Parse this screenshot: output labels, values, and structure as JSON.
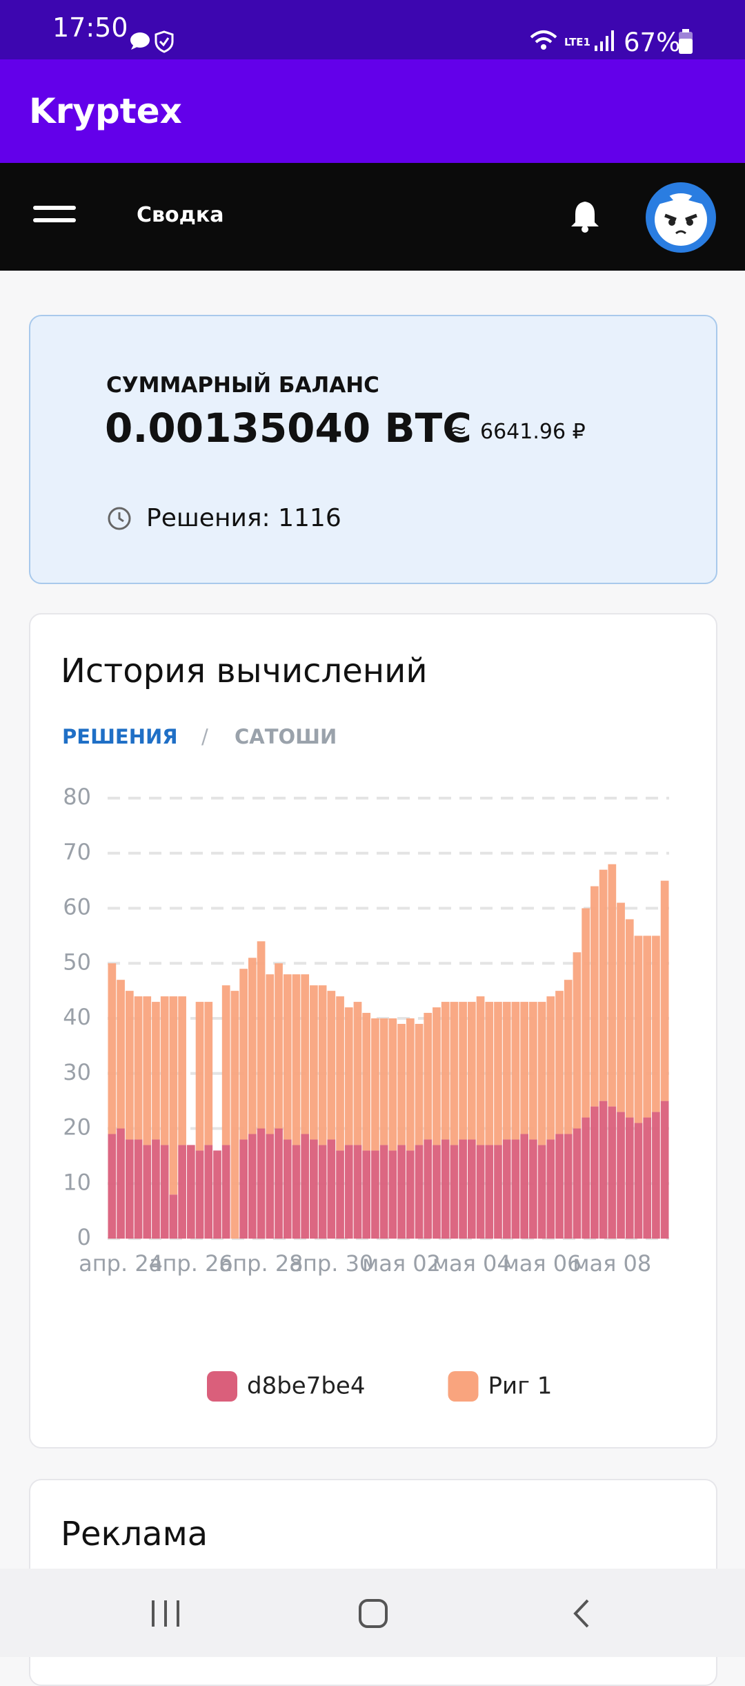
{
  "status_bar": {
    "time": "17:50",
    "network": "LTE1",
    "battery": "67%"
  },
  "app_bar": {
    "title": "Kryptex"
  },
  "nav": {
    "section": "Сводка"
  },
  "balance": {
    "label": "СУММАРНЫЙ БАЛАНС",
    "amount": "0.00135040 BTC",
    "approx": "≈",
    "fiat": "6641.96 ₽",
    "solutions": "Решения: 1116"
  },
  "history": {
    "title": "История вычислений",
    "tabs": [
      "РЕШЕНИЯ",
      "/",
      "САТОШИ"
    ]
  },
  "ad": {
    "title": "Реклама"
  },
  "chart_data": {
    "type": "bar",
    "stacked": true,
    "grid": true,
    "legend": "bottom",
    "categories": [
      null,
      "апр. 24",
      null,
      null,
      null,
      null,
      null,
      null,
      null,
      "апр. 26",
      null,
      null,
      null,
      null,
      null,
      null,
      null,
      "апр. 28",
      null,
      null,
      null,
      null,
      null,
      null,
      null,
      "апр. 30",
      null,
      null,
      null,
      null,
      null,
      null,
      null,
      "мая 02",
      null,
      null,
      null,
      null,
      null,
      null,
      null,
      "мая 04",
      null,
      null,
      null,
      null,
      null,
      null,
      null,
      "мая 06",
      null,
      null,
      null,
      null,
      null,
      null,
      null,
      "мая 08",
      null,
      null,
      null,
      null,
      null,
      null
    ],
    "series": [
      {
        "name": "d8be7be4",
        "color": "#da5f7b",
        "values": [
          19,
          20,
          18,
          18,
          17,
          18,
          17,
          8,
          17,
          17,
          16,
          17,
          16,
          17,
          0,
          18,
          19,
          20,
          19,
          20,
          18,
          17,
          19,
          18,
          17,
          18,
          16,
          17,
          17,
          16,
          16,
          17,
          16,
          17,
          16,
          17,
          18,
          17,
          18,
          17,
          18,
          18,
          17,
          17,
          17,
          18,
          18,
          19,
          18,
          17,
          18,
          19,
          19,
          20,
          22,
          24,
          25,
          24,
          23,
          22,
          21,
          22,
          23,
          25
        ]
      },
      {
        "name": "Риг 1",
        "color": "#f9a47e",
        "values": [
          31,
          27,
          27,
          26,
          27,
          25,
          27,
          36,
          27,
          0,
          27,
          26,
          0,
          29,
          45,
          31,
          32,
          34,
          29,
          30,
          30,
          31,
          29,
          28,
          29,
          27,
          28,
          25,
          26,
          25,
          24,
          23,
          24,
          22,
          24,
          22,
          23,
          25,
          25,
          26,
          25,
          25,
          27,
          26,
          26,
          25,
          25,
          24,
          25,
          26,
          26,
          26,
          28,
          32,
          38,
          40,
          42,
          44,
          38,
          36,
          34,
          33,
          32,
          40
        ]
      }
    ],
    "ylim": [
      0,
      80
    ],
    "yticks": [
      0,
      10,
      20,
      30,
      40,
      50,
      60,
      70,
      80
    ]
  }
}
